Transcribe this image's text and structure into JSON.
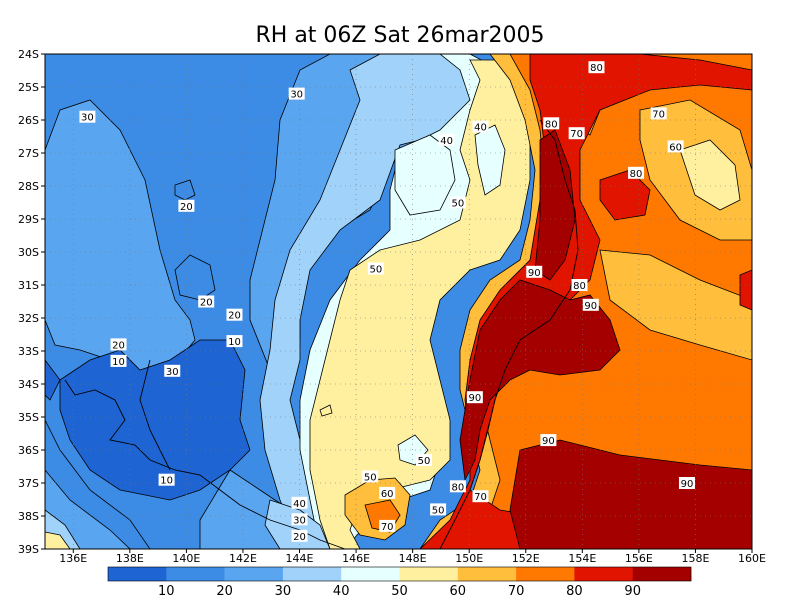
{
  "chart_data": {
    "type": "heatmap",
    "title": "RH at 06Z Sat 26mar2005",
    "x_ticks": [
      "136E",
      "138E",
      "140E",
      "142E",
      "144E",
      "146E",
      "148E",
      "150E",
      "152E",
      "154E",
      "156E",
      "158E",
      "160E"
    ],
    "x_tick_values": [
      136,
      138,
      140,
      142,
      144,
      146,
      148,
      150,
      152,
      154,
      156,
      158,
      160
    ],
    "xlim": [
      135,
      160
    ],
    "y_ticks": [
      "24S",
      "25S",
      "26S",
      "27S",
      "28S",
      "29S",
      "30S",
      "31S",
      "32S",
      "33S",
      "34S",
      "35S",
      "36S",
      "37S",
      "38S",
      "39S"
    ],
    "y_tick_values": [
      -24,
      -25,
      -26,
      -27,
      -28,
      -29,
      -30,
      -31,
      -32,
      -33,
      -34,
      -35,
      -36,
      -37,
      -38,
      -39
    ],
    "ylim": [
      -39,
      -24
    ],
    "grid": true,
    "contour_levels": [
      10,
      20,
      30,
      40,
      50,
      60,
      70,
      80,
      90
    ],
    "colorbar": {
      "labels": [
        "10",
        "20",
        "30",
        "40",
        "50",
        "60",
        "70",
        "80",
        "90"
      ],
      "colors": [
        "#1e64d2",
        "#3c8ce6",
        "#5aa5f0",
        "#a0d2fa",
        "#e6ffff",
        "#fff0a0",
        "#ffbe3c",
        "#ff7800",
        "#e11400",
        "#a50000"
      ]
    },
    "contour_labels": [
      {
        "text": "80",
        "lon": 154.5,
        "lat": -24.4
      },
      {
        "text": "30",
        "lon": 136.5,
        "lat": -25.9
      },
      {
        "text": "30",
        "lon": 143.9,
        "lat": -25.2
      },
      {
        "text": "70",
        "lon": 156.7,
        "lat": -25.8
      },
      {
        "text": "40",
        "lon": 150.4,
        "lat": -26.2
      },
      {
        "text": "80",
        "lon": 152.9,
        "lat": -26.1
      },
      {
        "text": "70",
        "lon": 153.8,
        "lat": -26.4
      },
      {
        "text": "40",
        "lon": 149.2,
        "lat": -26.6
      },
      {
        "text": "60",
        "lon": 157.3,
        "lat": -26.8
      },
      {
        "text": "80",
        "lon": 155.9,
        "lat": -27.6
      },
      {
        "text": "20",
        "lon": 140.0,
        "lat": -28.6
      },
      {
        "text": "50",
        "lon": 149.6,
        "lat": -28.5
      },
      {
        "text": "50",
        "lon": 146.7,
        "lat": -30.5
      },
      {
        "text": "90",
        "lon": 152.3,
        "lat": -30.6
      },
      {
        "text": "80",
        "lon": 153.9,
        "lat": -31.0
      },
      {
        "text": "20",
        "lon": 140.7,
        "lat": -31.5
      },
      {
        "text": "90",
        "lon": 154.3,
        "lat": -31.6
      },
      {
        "text": "20",
        "lon": 141.7,
        "lat": -31.9
      },
      {
        "text": "10",
        "lon": 141.7,
        "lat": -32.7
      },
      {
        "text": "20",
        "lon": 137.6,
        "lat": -32.8
      },
      {
        "text": "10",
        "lon": 137.6,
        "lat": -33.3
      },
      {
        "text": "30",
        "lon": 139.5,
        "lat": -33.6
      },
      {
        "text": "90",
        "lon": 150.2,
        "lat": -34.4
      },
      {
        "text": "90",
        "lon": 152.8,
        "lat": -35.7
      },
      {
        "text": "50",
        "lon": 148.4,
        "lat": -36.3
      },
      {
        "text": "10",
        "lon": 139.3,
        "lat": -36.9
      },
      {
        "text": "50",
        "lon": 146.5,
        "lat": -36.8
      },
      {
        "text": "90",
        "lon": 157.7,
        "lat": -37.0
      },
      {
        "text": "80",
        "lon": 149.6,
        "lat": -37.1
      },
      {
        "text": "60",
        "lon": 147.1,
        "lat": -37.3
      },
      {
        "text": "70",
        "lon": 150.4,
        "lat": -37.4
      },
      {
        "text": "40",
        "lon": 144.0,
        "lat": -37.6
      },
      {
        "text": "50",
        "lon": 148.9,
        "lat": -37.8
      },
      {
        "text": "30",
        "lon": 144.0,
        "lat": -38.1
      },
      {
        "text": "70",
        "lon": 147.1,
        "lat": -38.3
      },
      {
        "text": "20",
        "lon": 144.0,
        "lat": -38.6
      }
    ]
  }
}
